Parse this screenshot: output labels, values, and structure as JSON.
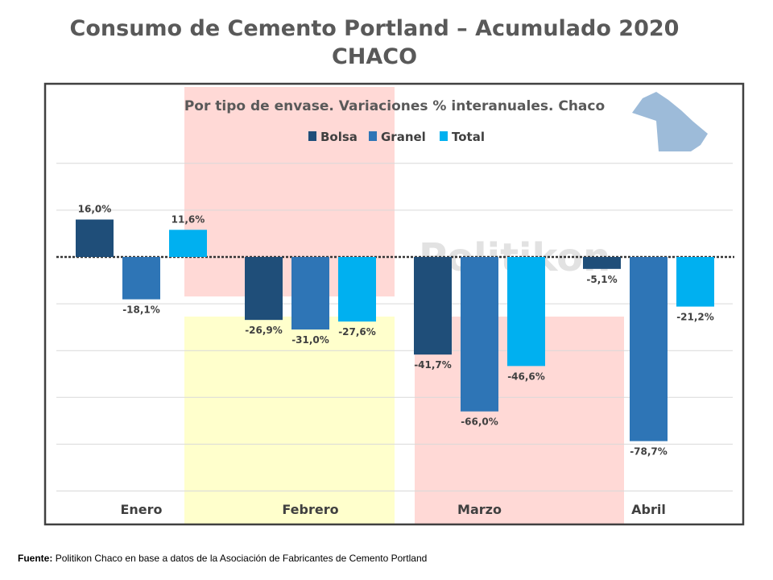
{
  "page_title": {
    "line1": "Consumo de Cemento Portland – Acumulado 2020",
    "line2": "CHACO"
  },
  "source": {
    "label": "Fuente:",
    "text": "Politikon Chaco en base a datos de la Asociación de Fabricantes de Cemento Portland"
  },
  "watermark": "Politikon",
  "map_icon": "chaco-province-map-icon",
  "colors": {
    "Bolsa": "#1f4e79",
    "Granel": "#2e75b6",
    "Total": "#00b0f0",
    "band_pink": "#ffd9d6",
    "band_yellow": "#ffffcc",
    "map": "#9dbbd9",
    "frame": "#404040"
  },
  "chart_data": {
    "type": "bar",
    "title": "Por tipo de envase. Variaciones % interanuales. Chaco",
    "categories": [
      "Enero",
      "Febrero",
      "Marzo",
      "Abril"
    ],
    "series": [
      {
        "name": "Bolsa",
        "values": [
          16.0,
          -26.9,
          -41.7,
          -5.1
        ],
        "labels": [
          "16,0%",
          "-26,9%",
          "-41,7%",
          "-5,1%"
        ]
      },
      {
        "name": "Granel",
        "values": [
          -18.1,
          -31.0,
          -66.0,
          -78.7
        ],
        "labels": [
          "-18,1%",
          "-31,0%",
          "-66,0%",
          "-78,7%"
        ]
      },
      {
        "name": "Total",
        "values": [
          11.6,
          -27.6,
          -46.6,
          -21.2
        ],
        "labels": [
          "11,6%",
          "-27,6%",
          "-46,6%",
          "-21,2%"
        ]
      }
    ],
    "ylim": [
      -100,
      40
    ],
    "grid": true,
    "legend": "top-center",
    "xlabel": "",
    "ylabel": ""
  }
}
